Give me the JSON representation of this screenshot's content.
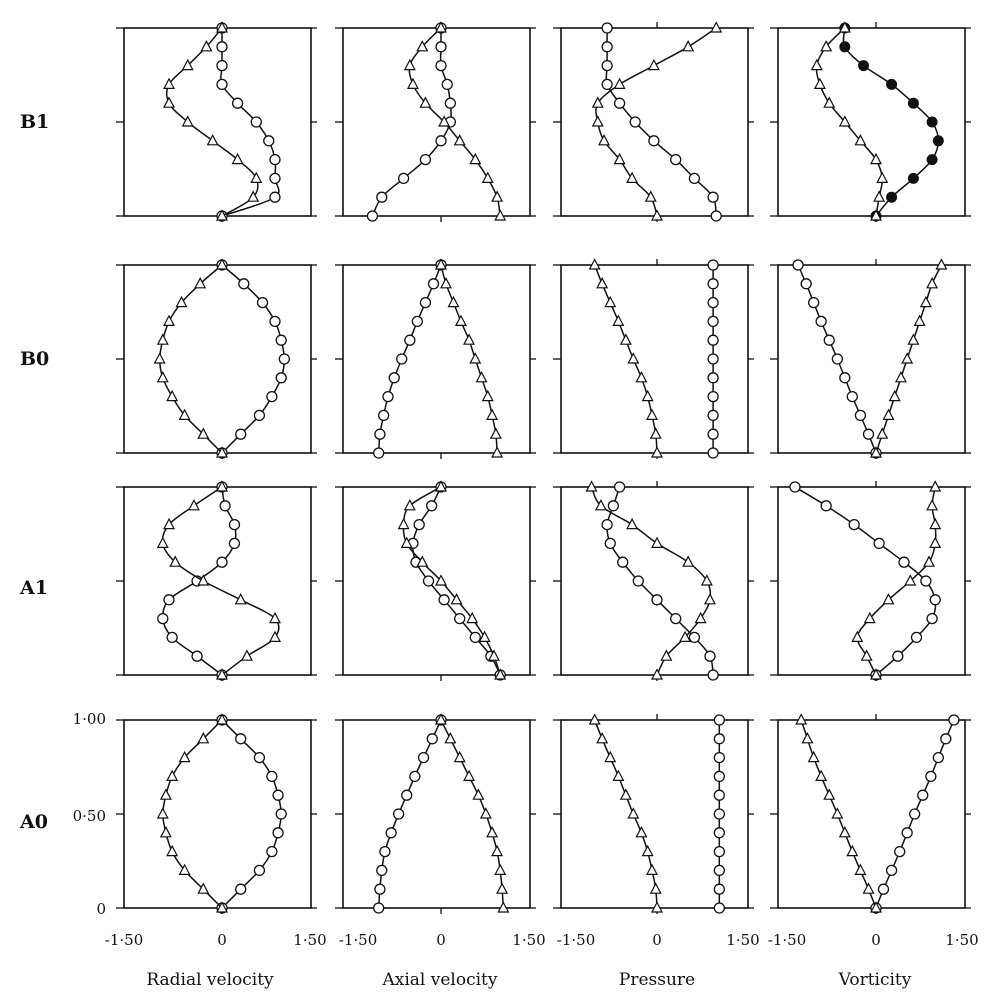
{
  "chart_data": {
    "type": "line",
    "row_labels": [
      "B1",
      "B0",
      "A1",
      "A0"
    ],
    "column_labels": [
      "Radial velocity",
      "Axial velocity",
      "Pressure",
      "Vorticity"
    ],
    "x_tick_labels": [
      "-1·50",
      "0",
      "1·50"
    ],
    "y_tick_labels": [
      "0",
      "0·50",
      "1·00"
    ],
    "xlim": [
      -1.5,
      1.5
    ],
    "ylim": [
      0,
      1
    ],
    "y": [
      0,
      0.1,
      0.2,
      0.3,
      0.4,
      0.5,
      0.6,
      0.7,
      0.8,
      0.9,
      1.0
    ],
    "panels": [
      {
        "row": "B1",
        "column": "Radial velocity",
        "series": [
          {
            "marker": "circle",
            "x": [
              0.0,
              0.85,
              0.85,
              0.85,
              0.75,
              0.55,
              0.25,
              0.0,
              0.0,
              0.0,
              0.0
            ]
          },
          {
            "marker": "triangle",
            "x": [
              0.0,
              0.5,
              0.55,
              0.25,
              -0.15,
              -0.55,
              -0.85,
              -0.85,
              -0.55,
              -0.25,
              0.0
            ]
          }
        ]
      },
      {
        "row": "B1",
        "column": "Axial velocity",
        "series": [
          {
            "marker": "circle",
            "x": [
              -1.1,
              -0.95,
              -0.6,
              -0.25,
              0.0,
              0.15,
              0.15,
              0.1,
              0.0,
              0.0,
              0.0
            ]
          },
          {
            "marker": "triangle",
            "x": [
              0.95,
              0.9,
              0.75,
              0.55,
              0.3,
              0.05,
              -0.25,
              -0.45,
              -0.5,
              -0.3,
              0.0
            ]
          }
        ]
      },
      {
        "row": "B1",
        "column": "Pressure",
        "series": [
          {
            "marker": "circle",
            "x": [
              0.95,
              0.9,
              0.6,
              0.3,
              -0.05,
              -0.35,
              -0.6,
              -0.8,
              -0.8,
              -0.8,
              -0.8
            ]
          },
          {
            "marker": "triangle",
            "x": [
              0.0,
              -0.1,
              -0.4,
              -0.6,
              -0.85,
              -0.95,
              -0.95,
              -0.6,
              -0.05,
              0.5,
              0.95
            ]
          }
        ]
      },
      {
        "row": "B1",
        "column": "Vorticity",
        "series": [
          {
            "marker": "filled-circle",
            "x": [
              0.0,
              0.25,
              0.6,
              0.9,
              1.0,
              0.9,
              0.6,
              0.25,
              -0.2,
              -0.5,
              -0.5
            ]
          },
          {
            "marker": "triangle",
            "x": [
              0.0,
              0.05,
              0.1,
              0.0,
              -0.25,
              -0.5,
              -0.75,
              -0.9,
              -0.95,
              -0.8,
              -0.5
            ]
          }
        ]
      },
      {
        "row": "B0",
        "column": "Radial velocity",
        "series": [
          {
            "marker": "circle",
            "x": [
              0.0,
              0.3,
              0.6,
              0.8,
              0.95,
              1.0,
              0.95,
              0.85,
              0.65,
              0.35,
              0.0
            ]
          },
          {
            "marker": "triangle",
            "x": [
              0.0,
              -0.3,
              -0.6,
              -0.8,
              -0.95,
              -1.0,
              -0.95,
              -0.85,
              -0.65,
              -0.35,
              0.0
            ]
          }
        ]
      },
      {
        "row": "B0",
        "column": "Axial velocity",
        "series": [
          {
            "marker": "circle",
            "x": [
              -1.0,
              -0.98,
              -0.92,
              -0.85,
              -0.75,
              -0.63,
              -0.5,
              -0.38,
              -0.25,
              -0.12,
              0.0
            ]
          },
          {
            "marker": "triangle",
            "x": [
              0.9,
              0.88,
              0.82,
              0.75,
              0.65,
              0.55,
              0.45,
              0.32,
              0.2,
              0.08,
              0.0
            ]
          }
        ]
      },
      {
        "row": "B0",
        "column": "Pressure",
        "series": [
          {
            "marker": "circle",
            "x": [
              0.9,
              0.9,
              0.9,
              0.9,
              0.9,
              0.9,
              0.9,
              0.9,
              0.9,
              0.9,
              0.9
            ]
          },
          {
            "marker": "triangle",
            "x": [
              0.0,
              -0.02,
              -0.08,
              -0.15,
              -0.25,
              -0.38,
              -0.5,
              -0.62,
              -0.75,
              -0.88,
              -1.0
            ]
          }
        ]
      },
      {
        "row": "B0",
        "column": "Vorticity",
        "series": [
          {
            "marker": "circle",
            "x": [
              0.0,
              -0.12,
              -0.25,
              -0.38,
              -0.5,
              -0.62,
              -0.75,
              -0.88,
              -1.0,
              -1.12,
              -1.25
            ]
          },
          {
            "marker": "triangle",
            "x": [
              0.0,
              0.1,
              0.2,
              0.3,
              0.4,
              0.5,
              0.6,
              0.7,
              0.8,
              0.9,
              1.05
            ]
          }
        ]
      },
      {
        "row": "A1",
        "column": "Radial velocity",
        "series": [
          {
            "marker": "circle",
            "x": [
              0.0,
              -0.4,
              -0.8,
              -0.95,
              -0.85,
              -0.4,
              0.0,
              0.2,
              0.2,
              0.05,
              0.0
            ]
          },
          {
            "marker": "triangle",
            "x": [
              0.0,
              0.4,
              0.85,
              0.85,
              0.3,
              -0.3,
              -0.75,
              -0.95,
              -0.85,
              -0.45,
              0.0
            ]
          }
        ]
      },
      {
        "row": "A1",
        "column": "Axial velocity",
        "series": [
          {
            "marker": "circle",
            "x": [
              0.95,
              0.8,
              0.55,
              0.3,
              0.05,
              -0.2,
              -0.4,
              -0.45,
              -0.35,
              -0.15,
              0.0
            ]
          },
          {
            "marker": "triangle",
            "x": [
              0.95,
              0.85,
              0.7,
              0.5,
              0.25,
              0.0,
              -0.3,
              -0.55,
              -0.6,
              -0.5,
              0.0
            ]
          }
        ]
      },
      {
        "row": "A1",
        "column": "Pressure",
        "series": [
          {
            "marker": "circle",
            "x": [
              0.9,
              0.85,
              0.6,
              0.3,
              0.0,
              -0.3,
              -0.55,
              -0.75,
              -0.8,
              -0.7,
              -0.6
            ]
          },
          {
            "marker": "triangle",
            "x": [
              0.0,
              0.15,
              0.45,
              0.7,
              0.85,
              0.8,
              0.5,
              0.0,
              -0.4,
              -0.9,
              -1.05
            ]
          }
        ]
      },
      {
        "row": "A1",
        "column": "Vorticity",
        "series": [
          {
            "marker": "circle",
            "x": [
              0.0,
              0.35,
              0.65,
              0.9,
              0.95,
              0.8,
              0.45,
              0.05,
              -0.35,
              -0.8,
              -1.3
            ]
          },
          {
            "marker": "triangle",
            "x": [
              0.0,
              -0.15,
              -0.3,
              -0.1,
              0.2,
              0.55,
              0.85,
              0.95,
              0.95,
              0.9,
              0.95
            ]
          }
        ]
      },
      {
        "row": "A0",
        "column": "Radial velocity",
        "series": [
          {
            "marker": "circle",
            "x": [
              0.0,
              0.3,
              0.6,
              0.8,
              0.9,
              0.95,
              0.9,
              0.8,
              0.6,
              0.3,
              0.0
            ]
          },
          {
            "marker": "triangle",
            "x": [
              0.0,
              -0.3,
              -0.6,
              -0.8,
              -0.9,
              -0.95,
              -0.9,
              -0.8,
              -0.6,
              -0.3,
              0.0
            ]
          }
        ]
      },
      {
        "row": "A0",
        "column": "Axial velocity",
        "series": [
          {
            "marker": "circle",
            "x": [
              -1.0,
              -0.98,
              -0.95,
              -0.9,
              -0.8,
              -0.68,
              -0.55,
              -0.42,
              -0.28,
              -0.14,
              0.0
            ]
          },
          {
            "marker": "triangle",
            "x": [
              1.0,
              0.98,
              0.95,
              0.9,
              0.82,
              0.72,
              0.6,
              0.45,
              0.3,
              0.15,
              0.0
            ]
          }
        ]
      },
      {
        "row": "A0",
        "column": "Pressure",
        "series": [
          {
            "marker": "circle",
            "x": [
              1.0,
              1.0,
              1.0,
              1.0,
              1.0,
              1.0,
              1.0,
              1.0,
              1.0,
              1.0,
              1.0
            ]
          },
          {
            "marker": "triangle",
            "x": [
              0.0,
              -0.02,
              -0.08,
              -0.15,
              -0.25,
              -0.38,
              -0.5,
              -0.62,
              -0.75,
              -0.88,
              -1.0
            ]
          }
        ]
      },
      {
        "row": "A0",
        "column": "Vorticity",
        "series": [
          {
            "marker": "circle",
            "x": [
              0.0,
              0.12,
              0.25,
              0.38,
              0.5,
              0.62,
              0.75,
              0.88,
              1.0,
              1.12,
              1.25
            ]
          },
          {
            "marker": "triangle",
            "x": [
              0.0,
              -0.12,
              -0.25,
              -0.38,
              -0.5,
              -0.62,
              -0.75,
              -0.88,
              -1.0,
              -1.1,
              -1.2
            ]
          }
        ]
      }
    ]
  }
}
